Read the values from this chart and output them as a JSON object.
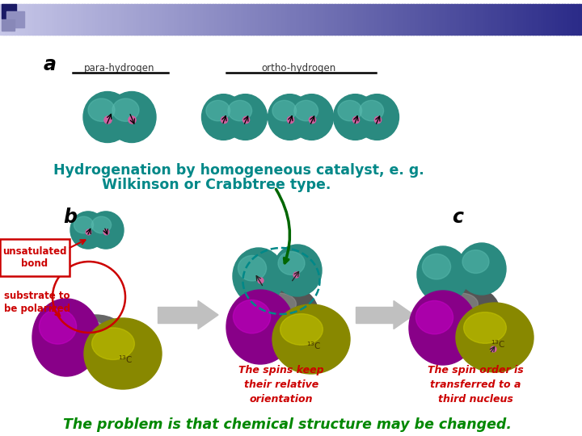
{
  "title_text1": "Hydrogenation by homogeneous catalyst, e. g.",
  "title_text2": "Wilkinson or Crabbtree type.",
  "title_color": "#008888",
  "label_a": "a",
  "label_b": "b",
  "label_c": "c",
  "para_hydrogen_label": "para-hydrogen",
  "ortho_hydrogen_label": "ortho-hydrogen",
  "unsatulated_text": "unsatulated\nbond",
  "substrate_text": "substrate to\nbe polarized",
  "spins_text": "The spins keep\ntheir relative\norientation",
  "spin_order_text": "The spin order is\ntransferred to a\nthird nucleus",
  "bottom_text": "The problem is that chemical structure may be changed.",
  "annotation_color": "#cc0000",
  "bottom_text_color": "#008800",
  "teal_color": "#5bbcb0",
  "teal_dark": "#2a8a80",
  "gray_color": "#888888",
  "gray_dark": "#555555",
  "yellow_color": "#cccc00",
  "yellow_dark": "#888800",
  "purple_color": "#cc00cc",
  "purple_dark": "#880088",
  "pink": "#d060a0",
  "header_light": "#c8c8e8",
  "header_dark": "#2a2a88"
}
